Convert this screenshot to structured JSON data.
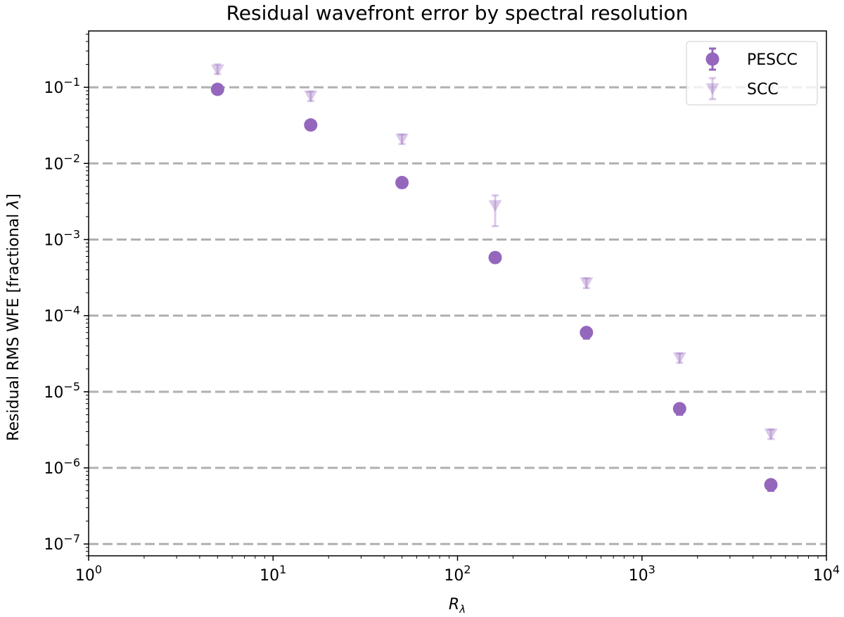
{
  "chart_data": {
    "type": "scatter",
    "title": "Residual wavefront error by spectral resolution",
    "xlabel": "R",
    "xlabel_subscript": "λ",
    "ylabel_prefix": "Residual RMS WFE [fractional ",
    "ylabel_symbol": "λ",
    "ylabel_suffix": "]",
    "xscale": "log",
    "yscale": "log",
    "xlim": [
      1,
      10000
    ],
    "ylim": [
      7e-08,
      0.55
    ],
    "x_ticks": [
      {
        "value": 1,
        "base": "10",
        "exp": "0"
      },
      {
        "value": 10,
        "base": "10",
        "exp": "1"
      },
      {
        "value": 100,
        "base": "10",
        "exp": "2"
      },
      {
        "value": 1000,
        "base": "10",
        "exp": "3"
      },
      {
        "value": 10000,
        "base": "10",
        "exp": "4"
      }
    ],
    "y_ticks": [
      {
        "value": 1e-07,
        "base": "10",
        "exp": "−7"
      },
      {
        "value": 1e-06,
        "base": "10",
        "exp": "−6"
      },
      {
        "value": 1e-05,
        "base": "10",
        "exp": "−5"
      },
      {
        "value": 0.0001,
        "base": "10",
        "exp": "−4"
      },
      {
        "value": 0.001,
        "base": "10",
        "exp": "−3"
      },
      {
        "value": 0.01,
        "base": "10",
        "exp": "−2"
      },
      {
        "value": 0.1,
        "base": "10",
        "exp": "−1"
      }
    ],
    "hlines": [
      1e-07,
      1e-06,
      1e-05,
      0.0001,
      0.001,
      0.01,
      0.1
    ],
    "legend_position": "top-right",
    "grid": false,
    "series": [
      {
        "name": "PESCC",
        "marker": "circle",
        "color": "#9467bd",
        "opacity": 1.0,
        "points": [
          {
            "x": 5,
            "y": 0.094,
            "ylo": 0.088,
            "yhi": 0.1
          },
          {
            "x": 16,
            "y": 0.032,
            "ylo": 0.03,
            "yhi": 0.034
          },
          {
            "x": 50,
            "y": 0.0056,
            "ylo": 0.0048,
            "yhi": 0.0062
          },
          {
            "x": 160,
            "y": 0.00058,
            "ylo": 0.0005,
            "yhi": 0.00064
          },
          {
            "x": 500,
            "y": 6e-05,
            "ylo": 5e-05,
            "yhi": 6.6e-05
          },
          {
            "x": 1600,
            "y": 6e-06,
            "ylo": 5e-06,
            "yhi": 6.6e-06
          },
          {
            "x": 5000,
            "y": 6e-07,
            "ylo": 5e-07,
            "yhi": 6.6e-07
          }
        ]
      },
      {
        "name": "SCC",
        "marker": "triangle-down",
        "color": "#9467bd",
        "opacity": 0.35,
        "points": [
          {
            "x": 5,
            "y": 0.17,
            "ylo": 0.15,
            "yhi": 0.2
          },
          {
            "x": 16,
            "y": 0.077,
            "ylo": 0.066,
            "yhi": 0.088
          },
          {
            "x": 50,
            "y": 0.021,
            "ylo": 0.018,
            "yhi": 0.024
          },
          {
            "x": 160,
            "y": 0.0028,
            "ylo": 0.0015,
            "yhi": 0.0038
          },
          {
            "x": 500,
            "y": 0.00027,
            "ylo": 0.00023,
            "yhi": 0.00031
          },
          {
            "x": 1600,
            "y": 2.8e-05,
            "ylo": 2.4e-05,
            "yhi": 3.2e-05
          },
          {
            "x": 5000,
            "y": 2.8e-06,
            "ylo": 2.4e-06,
            "yhi": 3.2e-06
          }
        ]
      }
    ]
  }
}
